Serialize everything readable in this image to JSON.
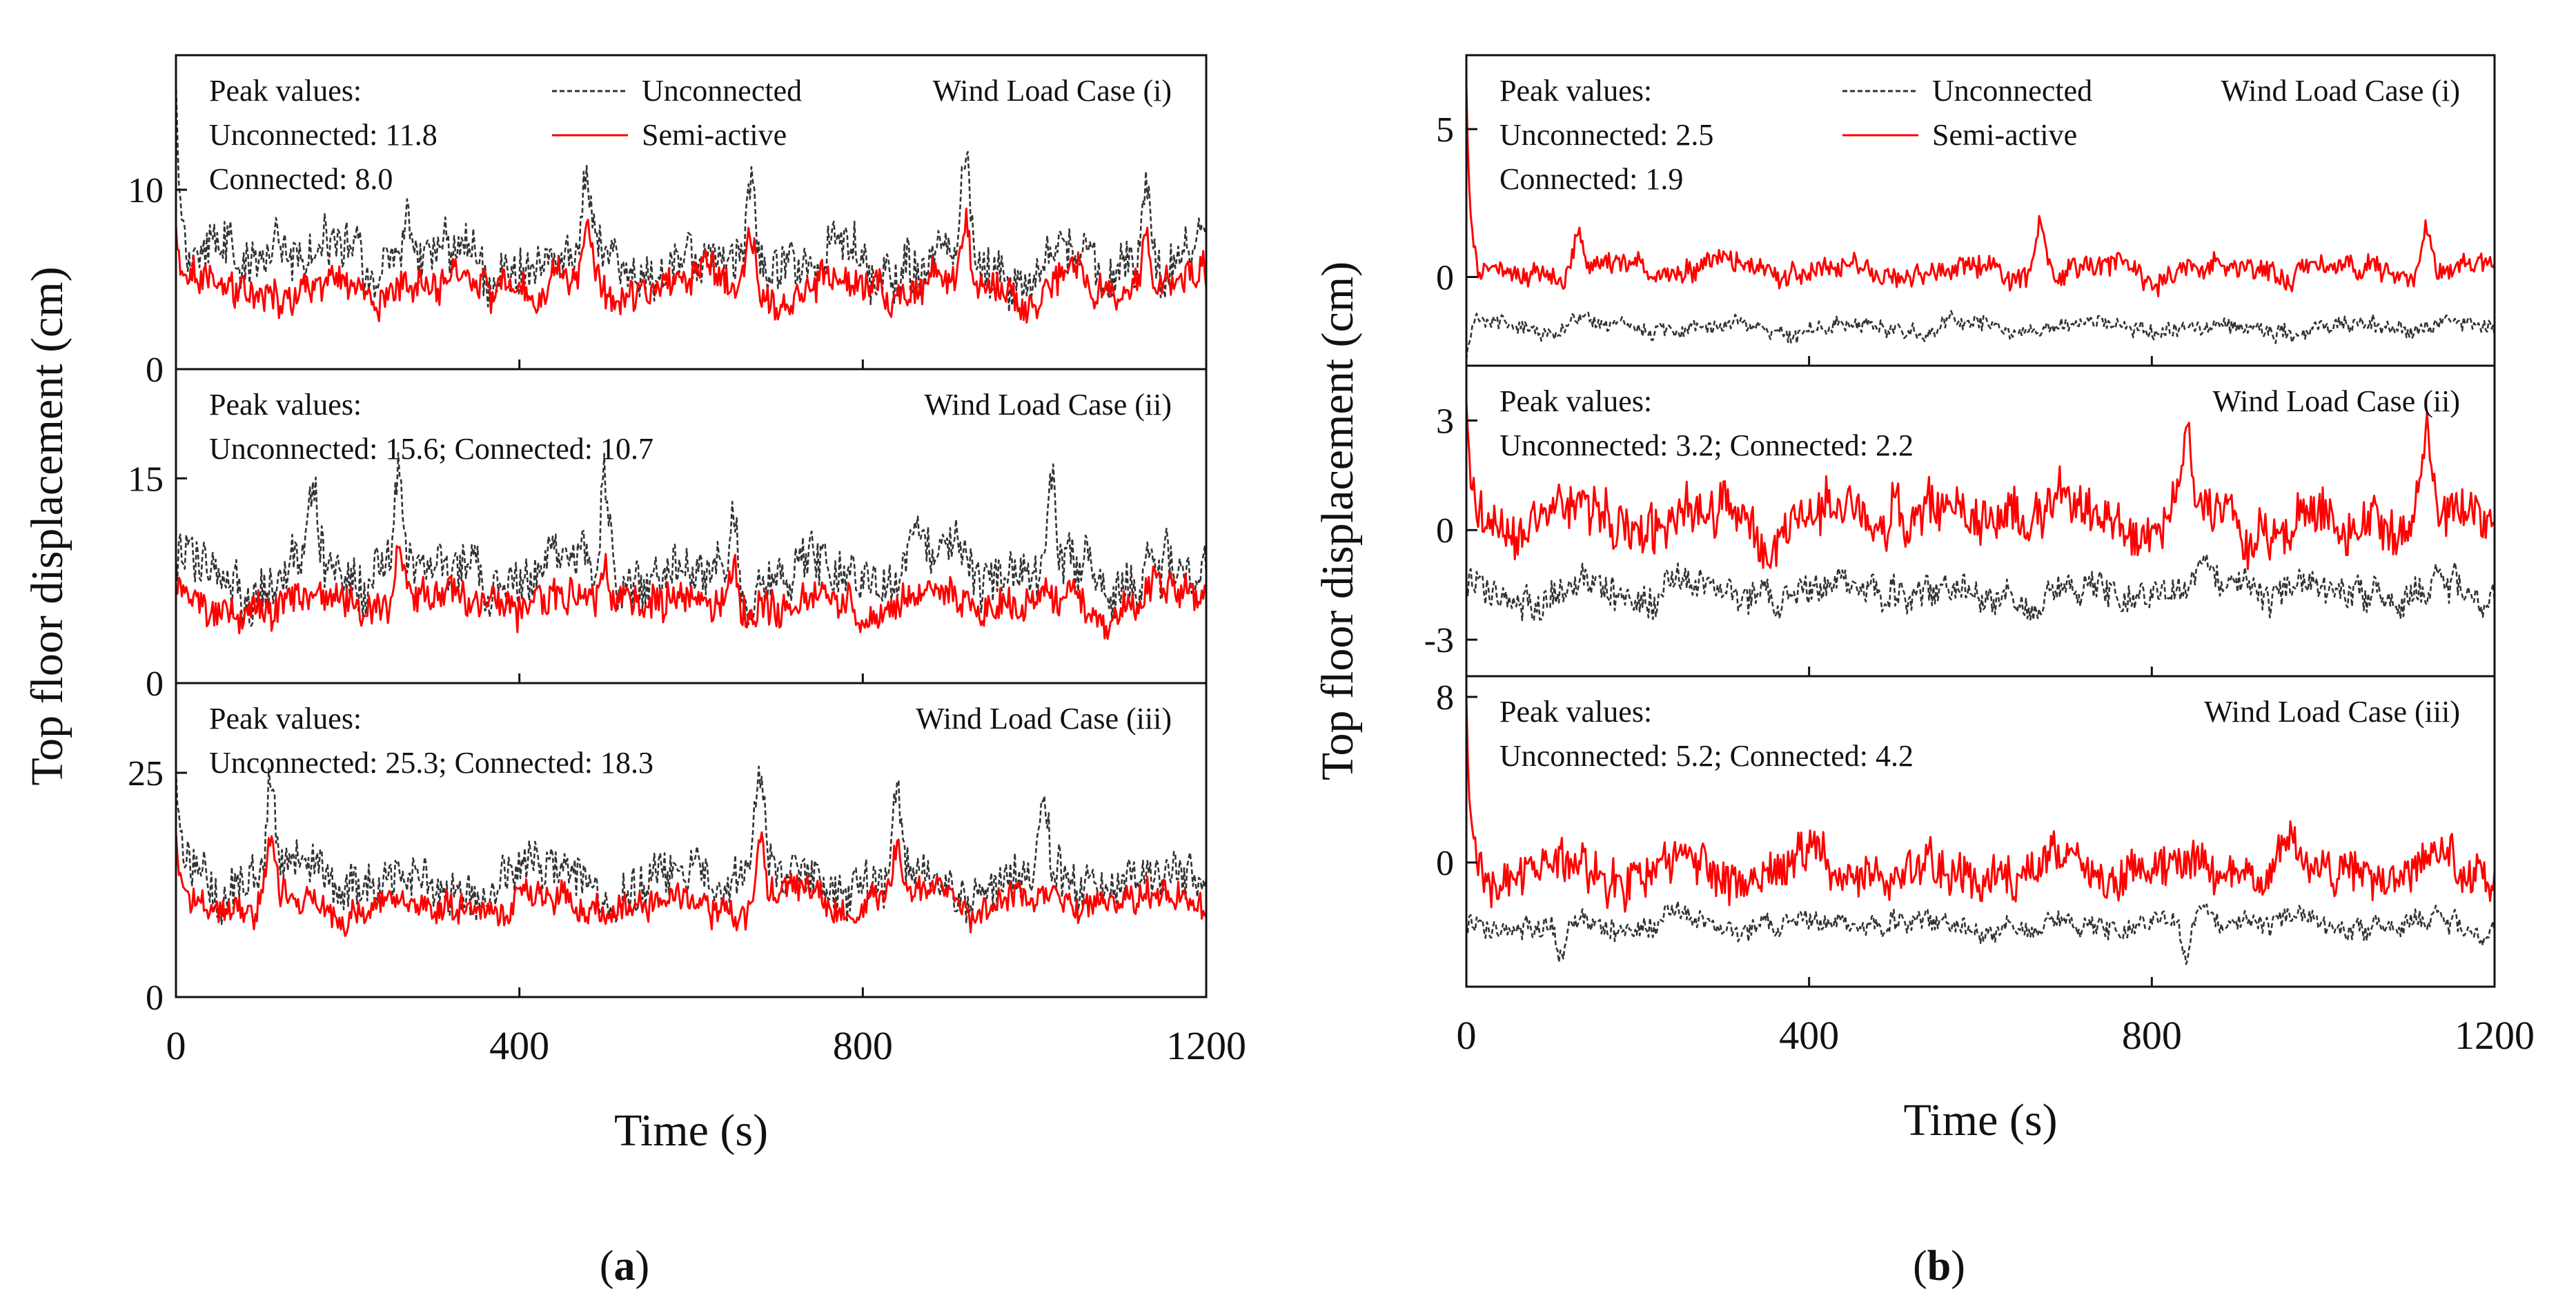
{
  "colors": {
    "unconnected": "#333333",
    "semi_active": "#ff0000",
    "axis": "#111111"
  },
  "legend": {
    "unconnected_label": "Unconnected",
    "semi_active_label": "Semi-active"
  },
  "captions": {
    "a": "a",
    "b": "b"
  },
  "chart_data": [
    {
      "panel": "a",
      "type": "line",
      "xlabel": "Time (s)",
      "ylabel": "Top floor displacement (cm)",
      "xlim": [
        0,
        1200
      ],
      "xticks": [
        "0",
        "400",
        "800",
        "1200"
      ],
      "subplots": [
        {
          "case_label": "Wind Load Case (i)",
          "peak_title": "Peak values:",
          "peak_lines": [
            "Unconnected: 11.8",
            "Connected: 8.0"
          ],
          "ylim": [
            0,
            17.5
          ],
          "yticks": [
            0,
            10
          ],
          "ytick_labels": [
            "0",
            "10"
          ],
          "show_legend": true,
          "series": [
            {
              "name": "Unconnected",
              "style": "dashed",
              "mean": 6.0,
              "amp": 2.2,
              "start_spike": 16.0,
              "peaks": [
                [
                  270,
                  9.5
                ],
                [
                  480,
                  10.0
                ],
                [
                  670,
                  11.8
                ],
                [
                  920,
                  10.5
                ],
                [
                  1130,
                  11.2
                ]
              ]
            },
            {
              "name": "Semi-active",
              "style": "solid",
              "mean": 4.5,
              "amp": 1.5,
              "start_spike": 8.0,
              "peaks": [
                [
                  480,
                  7.0
                ],
                [
                  670,
                  7.5
                ],
                [
                  920,
                  7.8
                ],
                [
                  1130,
                  8.0
                ]
              ]
            }
          ]
        },
        {
          "case_label": "Wind Load Case (ii)",
          "peak_title": "Peak values:",
          "peak_lines": [
            "Unconnected: 15.6; Connected: 10.7"
          ],
          "ylim": [
            0,
            23
          ],
          "yticks": [
            0,
            15
          ],
          "ytick_labels": [
            "0",
            "15"
          ],
          "show_legend": false,
          "series": [
            {
              "name": "Unconnected",
              "style": "dashed",
              "mean": 8.0,
              "amp": 3.0,
              "start_spike": 0,
              "peaks": [
                [
                  160,
                  13.5
                ],
                [
                  260,
                  15.6
                ],
                [
                  500,
                  14.5
                ],
                [
                  650,
                  14.0
                ],
                [
                  1020,
                  14.5
                ]
              ]
            },
            {
              "name": "Semi-active",
              "style": "solid",
              "mean": 6.0,
              "amp": 2.0,
              "start_spike": 0,
              "peaks": [
                [
                  260,
                  10.7
                ],
                [
                  500,
                  9.0
                ],
                [
                  650,
                  9.0
                ]
              ]
            }
          ]
        },
        {
          "case_label": "Wind Load Case (iii)",
          "peak_title": "Peak values:",
          "peak_lines": [
            "Unconnected: 25.3; Connected: 18.3"
          ],
          "ylim": [
            0,
            35
          ],
          "yticks": [
            0,
            25
          ],
          "ytick_labels": [
            "0",
            "25"
          ],
          "show_legend": false,
          "series": [
            {
              "name": "Unconnected",
              "style": "dashed",
              "mean": 13.0,
              "amp": 4.0,
              "start_spike": 25.3,
              "peaks": [
                [
                  110,
                  22.0
                ],
                [
                  680,
                  25.0
                ],
                [
                  840,
                  23.0
                ],
                [
                  1010,
                  21.0
                ]
              ]
            },
            {
              "name": "Semi-active",
              "style": "solid",
              "mean": 10.5,
              "amp": 2.6,
              "start_spike": 18.3,
              "peaks": [
                [
                  110,
                  17.0
                ],
                [
                  680,
                  18.0
                ],
                [
                  840,
                  16.0
                ]
              ]
            }
          ]
        }
      ]
    },
    {
      "panel": "b",
      "type": "line",
      "xlabel": "Time (s)",
      "ylabel": "Top floor displacement (cm)",
      "xlim": [
        0,
        1200
      ],
      "xticks": [
        "0",
        "400",
        "800",
        "1200"
      ],
      "subplots": [
        {
          "case_label": "Wind Load Case (i)",
          "peak_title": "Peak values:",
          "peak_lines": [
            "Unconnected: 2.5",
            "Connected: 1.9"
          ],
          "ylim": [
            -3.0,
            7.5
          ],
          "yticks": [
            0,
            5
          ],
          "ytick_labels": [
            "0",
            "5"
          ],
          "show_legend": true,
          "series": [
            {
              "name": "Unconnected",
              "style": "dashed",
              "mean": -1.7,
              "amp": 0.4,
              "start_spike": -2.8,
              "peaks": []
            },
            {
              "name": "Semi-active",
              "style": "solid",
              "mean": 0.2,
              "amp": 0.6,
              "start_spike": 6.5,
              "peaks": [
                [
                  130,
                  1.8
                ],
                [
                  670,
                  1.9
                ],
                [
                  1120,
                  1.8
                ]
              ]
            }
          ]
        },
        {
          "case_label": "Wind Load Case (ii)",
          "peak_title": "Peak values:",
          "peak_lines": [
            "Unconnected: 3.2; Connected: 2.2"
          ],
          "ylim": [
            -4.0,
            4.5
          ],
          "yticks": [
            -3,
            0,
            3
          ],
          "ytick_labels": [
            "-3",
            "0",
            "3"
          ],
          "show_legend": false,
          "series": [
            {
              "name": "Unconnected",
              "style": "dashed",
              "mean": -1.7,
              "amp": 0.7,
              "start_spike": 0,
              "peaks": []
            },
            {
              "name": "Semi-active",
              "style": "solid",
              "mean": 0.3,
              "amp": 1.0,
              "start_spike": 3.5,
              "peaks": [
                [
                  500,
                  2.2
                ],
                [
                  840,
                  2.2
                ],
                [
                  1120,
                  2.2
                ]
              ]
            }
          ]
        },
        {
          "case_label": "Wind Load Case (iii)",
          "peak_title": "Peak values:",
          "peak_lines": [
            "Unconnected: 5.2; Connected: 4.2"
          ],
          "ylim": [
            -6.0,
            9.0
          ],
          "yticks": [
            0,
            8
          ],
          "ytick_labels": [
            "0",
            "8"
          ],
          "show_legend": false,
          "series": [
            {
              "name": "Unconnected",
              "style": "dashed",
              "mean": -3.0,
              "amp": 0.8,
              "start_spike": 0,
              "peaks": [
                [
                  110,
                  -4.8
                ],
                [
                  840,
                  -4.8
                ]
              ]
            },
            {
              "name": "Semi-active",
              "style": "solid",
              "mean": -0.3,
              "amp": 1.6,
              "start_spike": 8.0,
              "peaks": []
            }
          ]
        }
      ]
    }
  ]
}
